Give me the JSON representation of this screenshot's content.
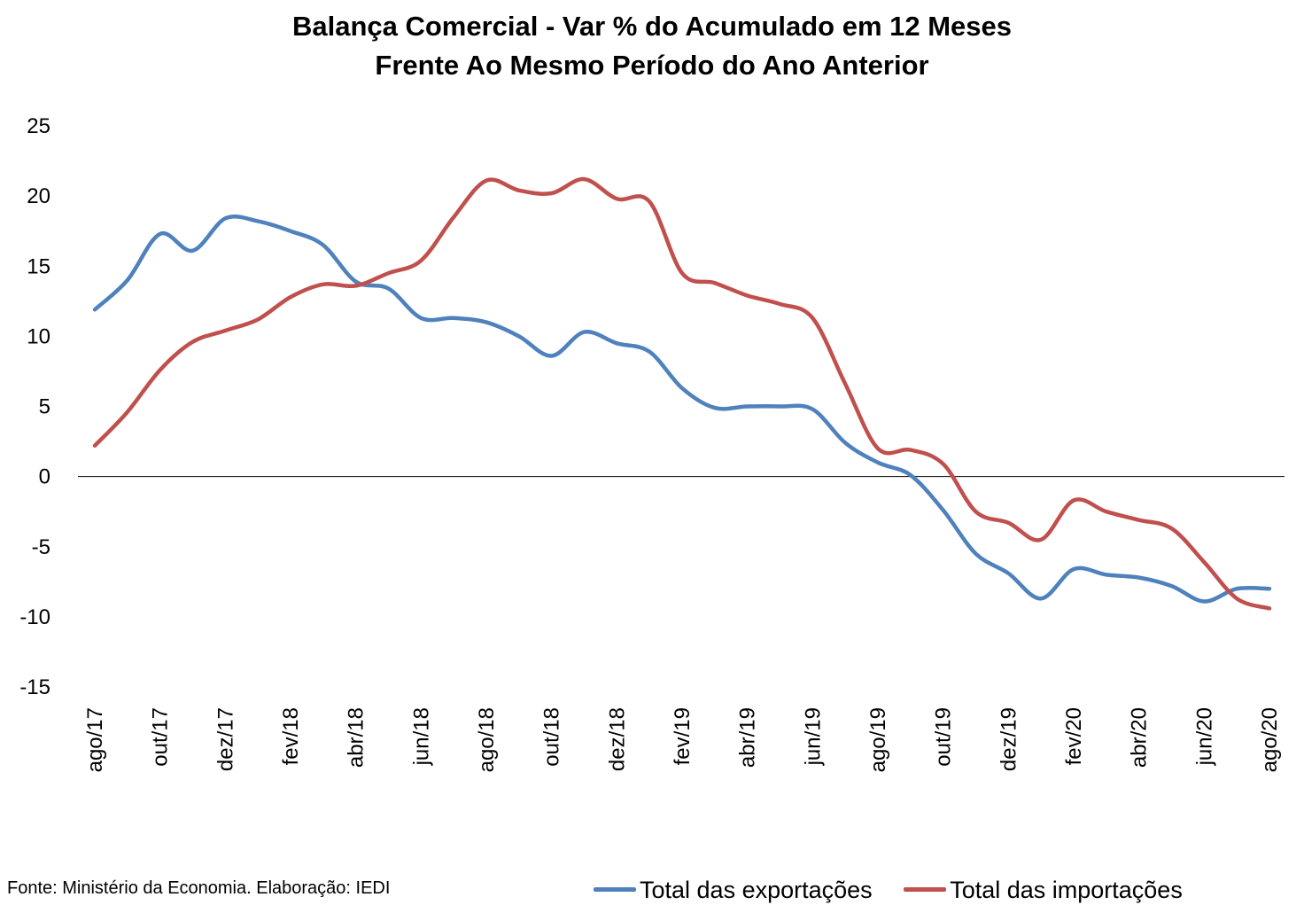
{
  "title_line1": "Balança Comercial - Var % do Acumulado em 12 Meses",
  "title_line2": "Frente Ao Mesmo Período do Ano Anterior",
  "source": "Fonte: Ministério da Economia. Elaboração: IEDI",
  "colors": {
    "exports": "#4f81bd",
    "imports": "#c0504d",
    "zero_line": "#000000"
  },
  "chart_data": {
    "type": "line",
    "title": "Balança Comercial - Var % do Acumulado em 12 Meses Frente Ao Mesmo Período do Ano Anterior",
    "xlabel": "",
    "ylabel": "",
    "ylim": [
      -15,
      25
    ],
    "yticks": [
      25,
      20,
      15,
      10,
      5,
      0,
      -5,
      -10,
      -15
    ],
    "grid": false,
    "legend_position": "bottom-right",
    "x": [
      "ago/17",
      "set/17",
      "out/17",
      "nov/17",
      "dez/17",
      "jan/18",
      "fev/18",
      "mar/18",
      "abr/18",
      "mai/18",
      "jun/18",
      "jul/18",
      "ago/18",
      "set/18",
      "out/18",
      "nov/18",
      "dez/18",
      "jan/19",
      "fev/19",
      "mar/19",
      "abr/19",
      "mai/19",
      "jun/19",
      "jul/19",
      "ago/19",
      "set/19",
      "out/19",
      "nov/19",
      "dez/19",
      "jan/20",
      "fev/20",
      "mar/20",
      "abr/20",
      "mai/20",
      "jun/20",
      "jul/20",
      "ago/20"
    ],
    "x_tick_labels": [
      "ago/17",
      "out/17",
      "dez/17",
      "fev/18",
      "abr/18",
      "jun/18",
      "ago/18",
      "out/18",
      "dez/18",
      "fev/19",
      "abr/19",
      "jun/19",
      "ago/19",
      "out/19",
      "dez/19",
      "fev/20",
      "abr/20",
      "jun/20",
      "ago/20"
    ],
    "series": [
      {
        "name": "Total das exportações",
        "values": [
          11.9,
          14.0,
          17.3,
          16.1,
          18.4,
          18.2,
          17.5,
          16.5,
          13.9,
          13.4,
          11.3,
          11.3,
          11.0,
          10.0,
          8.6,
          10.3,
          9.5,
          8.9,
          6.3,
          4.9,
          5.0,
          5.0,
          4.8,
          2.4,
          1.0,
          0.1,
          -2.4,
          -5.5,
          -6.9,
          -8.7,
          -6.6,
          -7.0,
          -7.2,
          -7.8,
          -8.9,
          -8.0,
          -8.0
        ]
      },
      {
        "name": "Total das importações",
        "values": [
          2.2,
          4.6,
          7.6,
          9.6,
          10.4,
          11.2,
          12.8,
          13.7,
          13.6,
          14.5,
          15.4,
          18.5,
          21.1,
          20.4,
          20.2,
          21.2,
          19.8,
          19.6,
          14.5,
          13.8,
          12.9,
          12.3,
          11.3,
          6.6,
          2.0,
          1.9,
          0.9,
          -2.5,
          -3.3,
          -4.5,
          -1.7,
          -2.5,
          -3.1,
          -3.7,
          -6.1,
          -8.7,
          -9.4
        ]
      }
    ]
  }
}
